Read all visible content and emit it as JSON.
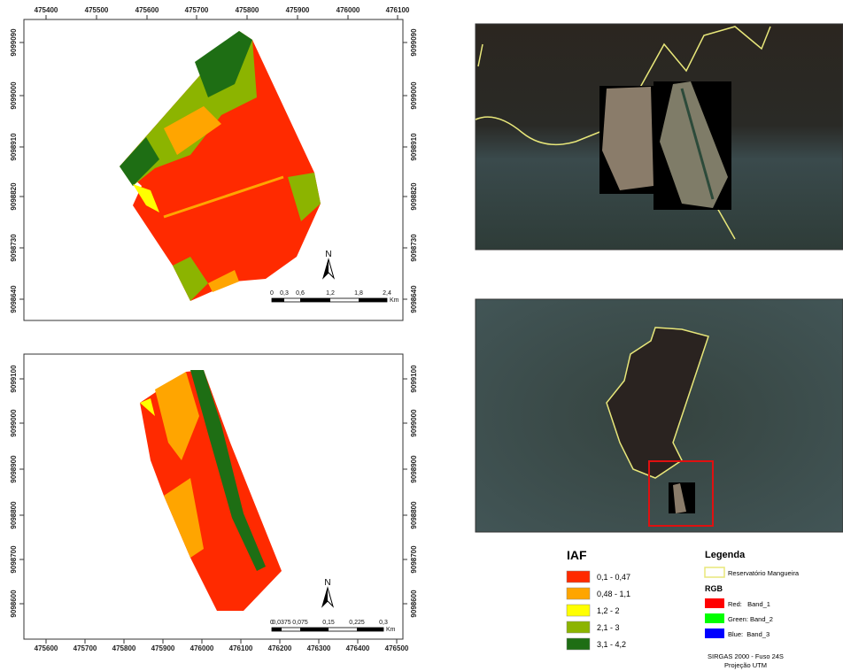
{
  "top_map": {
    "x_ticks": [
      "475400",
      "475500",
      "475600",
      "475700",
      "475800",
      "475900",
      "476000",
      "476100"
    ],
    "y_ticks": [
      "9099090",
      "9099000",
      "9098910",
      "9098820",
      "9098730",
      "9098640"
    ],
    "scale_bar": {
      "labels": [
        "0",
        "0,3",
        "0,6",
        "1,2",
        "1,8",
        "2,4"
      ],
      "unit": "Km"
    },
    "north": "N"
  },
  "bottom_map": {
    "x_ticks": [
      "475600",
      "475700",
      "475800",
      "475900",
      "476000",
      "476100",
      "476200",
      "476300",
      "476400",
      "476500"
    ],
    "y_ticks": [
      "9099100",
      "9099000",
      "9098900",
      "9098800",
      "9098700",
      "9098600"
    ],
    "scale_bar": {
      "labels": [
        "0",
        "0,0375",
        "0,075",
        "0,15",
        "0,225",
        "0,3"
      ],
      "unit": "Km"
    },
    "north": "N"
  },
  "iaf_legend": {
    "title": "IAF",
    "items": [
      {
        "label": "0,1 - 0,47",
        "color": "#ff2a00"
      },
      {
        "label": "0,48 - 1,1",
        "color": "#ffa500"
      },
      {
        "label": "1,2 - 2",
        "color": "#ffff00"
      },
      {
        "label": "2,1 - 3",
        "color": "#8cb400"
      },
      {
        "label": "3,1 - 4,2",
        "color": "#1e6e14"
      }
    ]
  },
  "legend": {
    "title": "Legenda",
    "reservoir": "Reservatório Mangueira",
    "rgb_title": "RGB",
    "bands": [
      {
        "label": "Red:   Band_1",
        "color": "#ff0000"
      },
      {
        "label": "Green: Band_2",
        "color": "#00ff00"
      },
      {
        "label": "Blue:  Band_3",
        "color": "#0000ff"
      }
    ],
    "crs": "SIRGAS 2000 - Fuso 24S",
    "projection": "Projeção UTM"
  }
}
